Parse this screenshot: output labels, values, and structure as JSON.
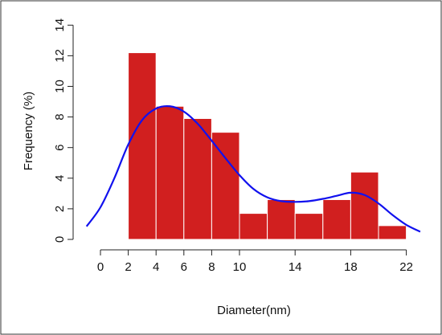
{
  "chart_data": {
    "type": "bar",
    "title": "",
    "xlabel": "Diameter(nm)",
    "ylabel": "Frequency (%)",
    "xlim": [
      0,
      22.5
    ],
    "ylim": [
      0,
      14
    ],
    "x_ticks": [
      "0",
      "2",
      "4",
      "6",
      "8",
      "10",
      "14",
      "18",
      "22"
    ],
    "y_ticks": [
      "0",
      "2",
      "4",
      "6",
      "8",
      "10",
      "12",
      "14"
    ],
    "grid": false,
    "legend": "none",
    "histogram": {
      "bin_edges": [
        2,
        4,
        6,
        8,
        10,
        12,
        14,
        16,
        18,
        20,
        22
      ],
      "values": [
        12.2,
        8.7,
        7.9,
        7.0,
        1.7,
        2.6,
        1.7,
        2.6,
        4.4,
        0.9
      ],
      "color": "#d11f1f"
    },
    "density_curve": {
      "color": "#1111ee",
      "points": [
        [
          -1.0,
          0.85
        ],
        [
          0.0,
          2.1
        ],
        [
          1.0,
          4.0
        ],
        [
          2.0,
          6.2
        ],
        [
          3.0,
          7.8
        ],
        [
          4.0,
          8.55
        ],
        [
          5.0,
          8.7
        ],
        [
          6.0,
          8.35
        ],
        [
          7.0,
          7.55
        ],
        [
          8.0,
          6.45
        ],
        [
          9.0,
          5.3
        ],
        [
          10.0,
          4.2
        ],
        [
          11.0,
          3.3
        ],
        [
          12.0,
          2.75
        ],
        [
          13.0,
          2.5
        ],
        [
          14.0,
          2.45
        ],
        [
          15.0,
          2.5
        ],
        [
          16.0,
          2.65
        ],
        [
          17.0,
          2.85
        ],
        [
          18.0,
          3.05
        ],
        [
          19.0,
          2.9
        ],
        [
          20.0,
          2.35
        ],
        [
          21.0,
          1.6
        ],
        [
          22.0,
          0.95
        ],
        [
          23.0,
          0.5
        ]
      ]
    }
  }
}
